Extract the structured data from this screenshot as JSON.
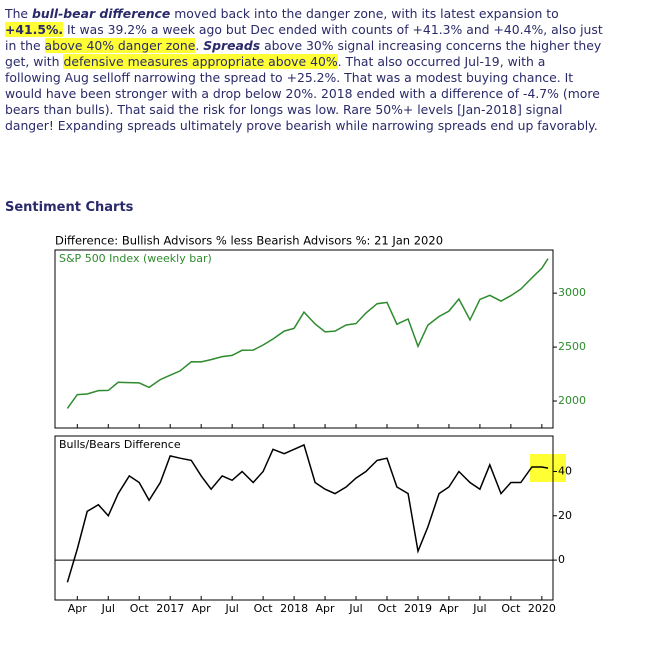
{
  "intro": [
    "The ",
    "bull-bear difference",
    " moved back into the danger zone, with its latest expansion to ",
    "+41.5%.",
    " It was 39.2% a week ago but Dec ended with counts of +41.3% and +40.4%, also just in the ",
    "above 40% danger zone",
    ". ",
    "Spreads",
    " above 30% signal increasing concerns the higher they get, with ",
    "defensive measures appropriate above 40%",
    ". That also occurred Jul-19, with a following Aug selloff narrowing the spread to +25.2%. That was a modest buying chance. It would have been stronger with a drop below 20%. 2018 ended with a difference of -4.7% (more bears than bulls). That said the risk for longs was low. Rare 50%+ levels [Jan-2018] signal danger! Expanding spreads ultimately prove bearish while narrowing spreads end up favorably."
  ],
  "heading": "Sentiment Charts",
  "chart_title": "Difference: Bullish Advisors % less Bearish Advisors %: 21 Jan 2020",
  "chart_data": [
    {
      "type": "line",
      "title": "S&P 500 Index (weekly bar)",
      "color": "#2e8b2e",
      "x": [
        2016.17,
        2016.25,
        2016.33,
        2016.42,
        2016.5,
        2016.58,
        2016.67,
        2016.75,
        2016.83,
        2016.92,
        2017,
        2017.08,
        2017.17,
        2017.25,
        2017.33,
        2017.42,
        2017.5,
        2017.58,
        2017.67,
        2017.75,
        2017.83,
        2017.92,
        2018,
        2018.08,
        2018.17,
        2018.25,
        2018.33,
        2018.42,
        2018.5,
        2018.58,
        2018.67,
        2018.75,
        2018.83,
        2018.92,
        2019,
        2019.08,
        2019.17,
        2019.25,
        2019.33,
        2019.42,
        2019.5,
        2019.58,
        2019.67,
        2019.75,
        2019.83,
        2019.92,
        2020,
        2020.05
      ],
      "values": [
        1932,
        2060,
        2065,
        2097,
        2099,
        2174,
        2171,
        2168,
        2126,
        2199,
        2239,
        2279,
        2364,
        2363,
        2384,
        2412,
        2423,
        2470,
        2472,
        2519,
        2575,
        2648,
        2674,
        2824,
        2714,
        2641,
        2648,
        2705,
        2718,
        2816,
        2902,
        2914,
        2712,
        2760,
        2507,
        2704,
        2784,
        2834,
        2946,
        2752,
        2942,
        2980,
        2926,
        2977,
        3038,
        3141,
        3231,
        3320
      ],
      "xlim": [
        2016.07,
        2020.09
      ],
      "ylim": [
        1750,
        3400
      ],
      "yticks": [
        2000,
        2500,
        3000
      ]
    },
    {
      "type": "line",
      "title": "Bulls/Bears Difference",
      "color": "#000000",
      "x": [
        2016.17,
        2016.25,
        2016.33,
        2016.42,
        2016.5,
        2016.58,
        2016.67,
        2016.75,
        2016.83,
        2016.92,
        2017,
        2017.08,
        2017.17,
        2017.25,
        2017.33,
        2017.42,
        2017.5,
        2017.58,
        2017.67,
        2017.75,
        2017.83,
        2017.92,
        2018,
        2018.08,
        2018.17,
        2018.25,
        2018.33,
        2018.42,
        2018.5,
        2018.58,
        2018.67,
        2018.75,
        2018.83,
        2018.92,
        2019,
        2019.08,
        2019.17,
        2019.25,
        2019.33,
        2019.42,
        2019.5,
        2019.58,
        2019.67,
        2019.75,
        2019.83,
        2019.92,
        2020,
        2020.05
      ],
      "values": [
        -10,
        5,
        22,
        25,
        20,
        30,
        38,
        35,
        27,
        35,
        47,
        46,
        45,
        38,
        32,
        38,
        36,
        40,
        35,
        40,
        50,
        48,
        50,
        52,
        35,
        32,
        30,
        33,
        37,
        40,
        45,
        46,
        33,
        30,
        4,
        15,
        30,
        33,
        40,
        35,
        32,
        43,
        30,
        35,
        35,
        42,
        42,
        41.5
      ],
      "xlim": [
        2016.07,
        2020.09
      ],
      "ylim": [
        -18,
        56
      ],
      "yticks": [
        0,
        20,
        40
      ],
      "xticks": [
        {
          "value": 2016.25,
          "label": "Apr"
        },
        {
          "value": 2016.5,
          "label": "Jul"
        },
        {
          "value": 2016.75,
          "label": "Oct"
        },
        2017,
        {
          "value": 2017.25,
          "label": "Apr"
        },
        {
          "value": 2017.5,
          "label": "Jul"
        },
        {
          "value": 2017.75,
          "label": "Oct"
        },
        2018,
        {
          "value": 2018.25,
          "label": "Apr"
        },
        {
          "value": 2018.5,
          "label": "Jul"
        },
        {
          "value": 2018.75,
          "label": "Oct"
        },
        2019,
        {
          "value": 2019.25,
          "label": "Apr"
        },
        {
          "value": 2019.5,
          "label": "Jul"
        },
        {
          "value": 2019.75,
          "label": "Oct"
        },
        2020
      ]
    }
  ]
}
